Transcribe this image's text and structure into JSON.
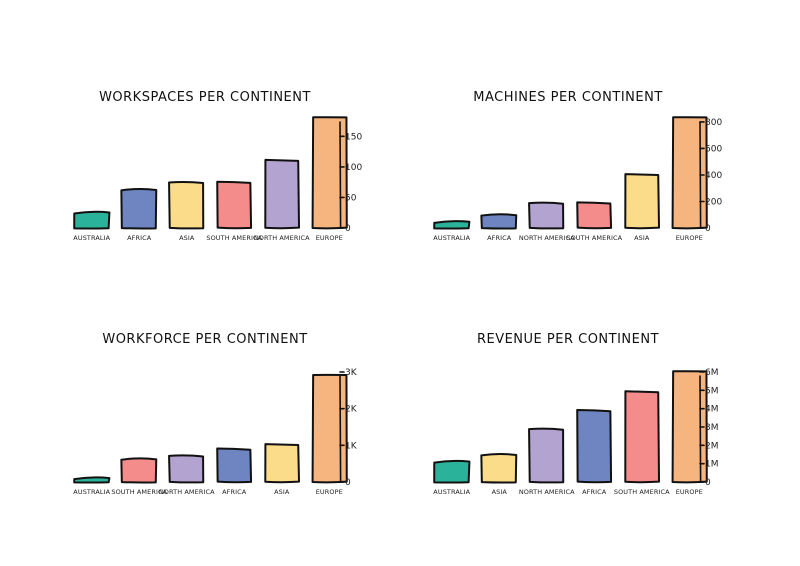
{
  "colors": {
    "teal": "#2ab39a",
    "blue": "#6e85c2",
    "yellow": "#fbdc8a",
    "pink": "#f48c8c",
    "purple": "#b3a3d0",
    "orange": "#f6b47f"
  },
  "chart_data": [
    {
      "type": "bar",
      "title": "WORKSPACES PER CONTINENT",
      "categories": [
        "AUSTRALIA",
        "AFRICA",
        "ASIA",
        "SOUTH AMERICA",
        "NORTH AMERICA",
        "EUROPE"
      ],
      "values": [
        25,
        63,
        75,
        75,
        110,
        180
      ],
      "colors": [
        "teal",
        "blue",
        "yellow",
        "pink",
        "purple",
        "orange"
      ],
      "ticks": [
        0,
        50,
        100,
        150
      ],
      "tick_labels": [
        "0",
        "50",
        "100",
        "150"
      ],
      "ylim": [
        0,
        180
      ],
      "xlabel": "",
      "ylabel": ""
    },
    {
      "type": "bar",
      "title": "MACHINES PER CONTINENT",
      "categories": [
        "AUSTRALIA",
        "AFRICA",
        "NORTH AMERICA",
        "SOUTH AMERICA",
        "ASIA",
        "EUROPE"
      ],
      "values": [
        45,
        100,
        190,
        190,
        400,
        830
      ],
      "colors": [
        "teal",
        "blue",
        "purple",
        "pink",
        "yellow",
        "orange"
      ],
      "ticks": [
        0,
        200,
        400,
        600,
        800
      ],
      "tick_labels": [
        "0",
        "200",
        "400",
        "600",
        "800"
      ],
      "ylim": [
        0,
        830
      ],
      "xlabel": "",
      "ylabel": ""
    },
    {
      "type": "bar",
      "title": "WORKFORCE PER CONTINENT",
      "categories": [
        "AUSTRALIA",
        "SOUTH AMERICA",
        "NORTH AMERICA",
        "AFRICA",
        "ASIA",
        "EUROPE"
      ],
      "values": [
        100,
        630,
        720,
        900,
        1010,
        2900
      ],
      "colors": [
        "teal",
        "pink",
        "purple",
        "blue",
        "yellow",
        "orange"
      ],
      "ticks": [
        0,
        1000,
        2000,
        3000
      ],
      "tick_labels": [
        "0",
        "1K",
        "2K",
        "3K"
      ],
      "ylim": [
        0,
        3000
      ],
      "xlabel": "",
      "ylabel": ""
    },
    {
      "type": "bar",
      "title": "REVENUE PER CONTINENT",
      "categories": [
        "AUSTRALIA",
        "ASIA",
        "NORTH AMERICA",
        "AFRICA",
        "SOUTH AMERICA",
        "EUROPE"
      ],
      "values": [
        1100000,
        1500000,
        2900000,
        3900000,
        4900000,
        6000000
      ],
      "colors": [
        "teal",
        "yellow",
        "purple",
        "blue",
        "pink",
        "orange"
      ],
      "ticks": [
        0,
        1000000,
        2000000,
        3000000,
        4000000,
        5000000,
        6000000
      ],
      "tick_labels": [
        "0",
        "1M",
        "2M",
        "3M",
        "4M",
        "5M",
        "6M"
      ],
      "ylim": [
        0,
        6000000
      ],
      "xlabel": "",
      "ylabel": ""
    }
  ]
}
